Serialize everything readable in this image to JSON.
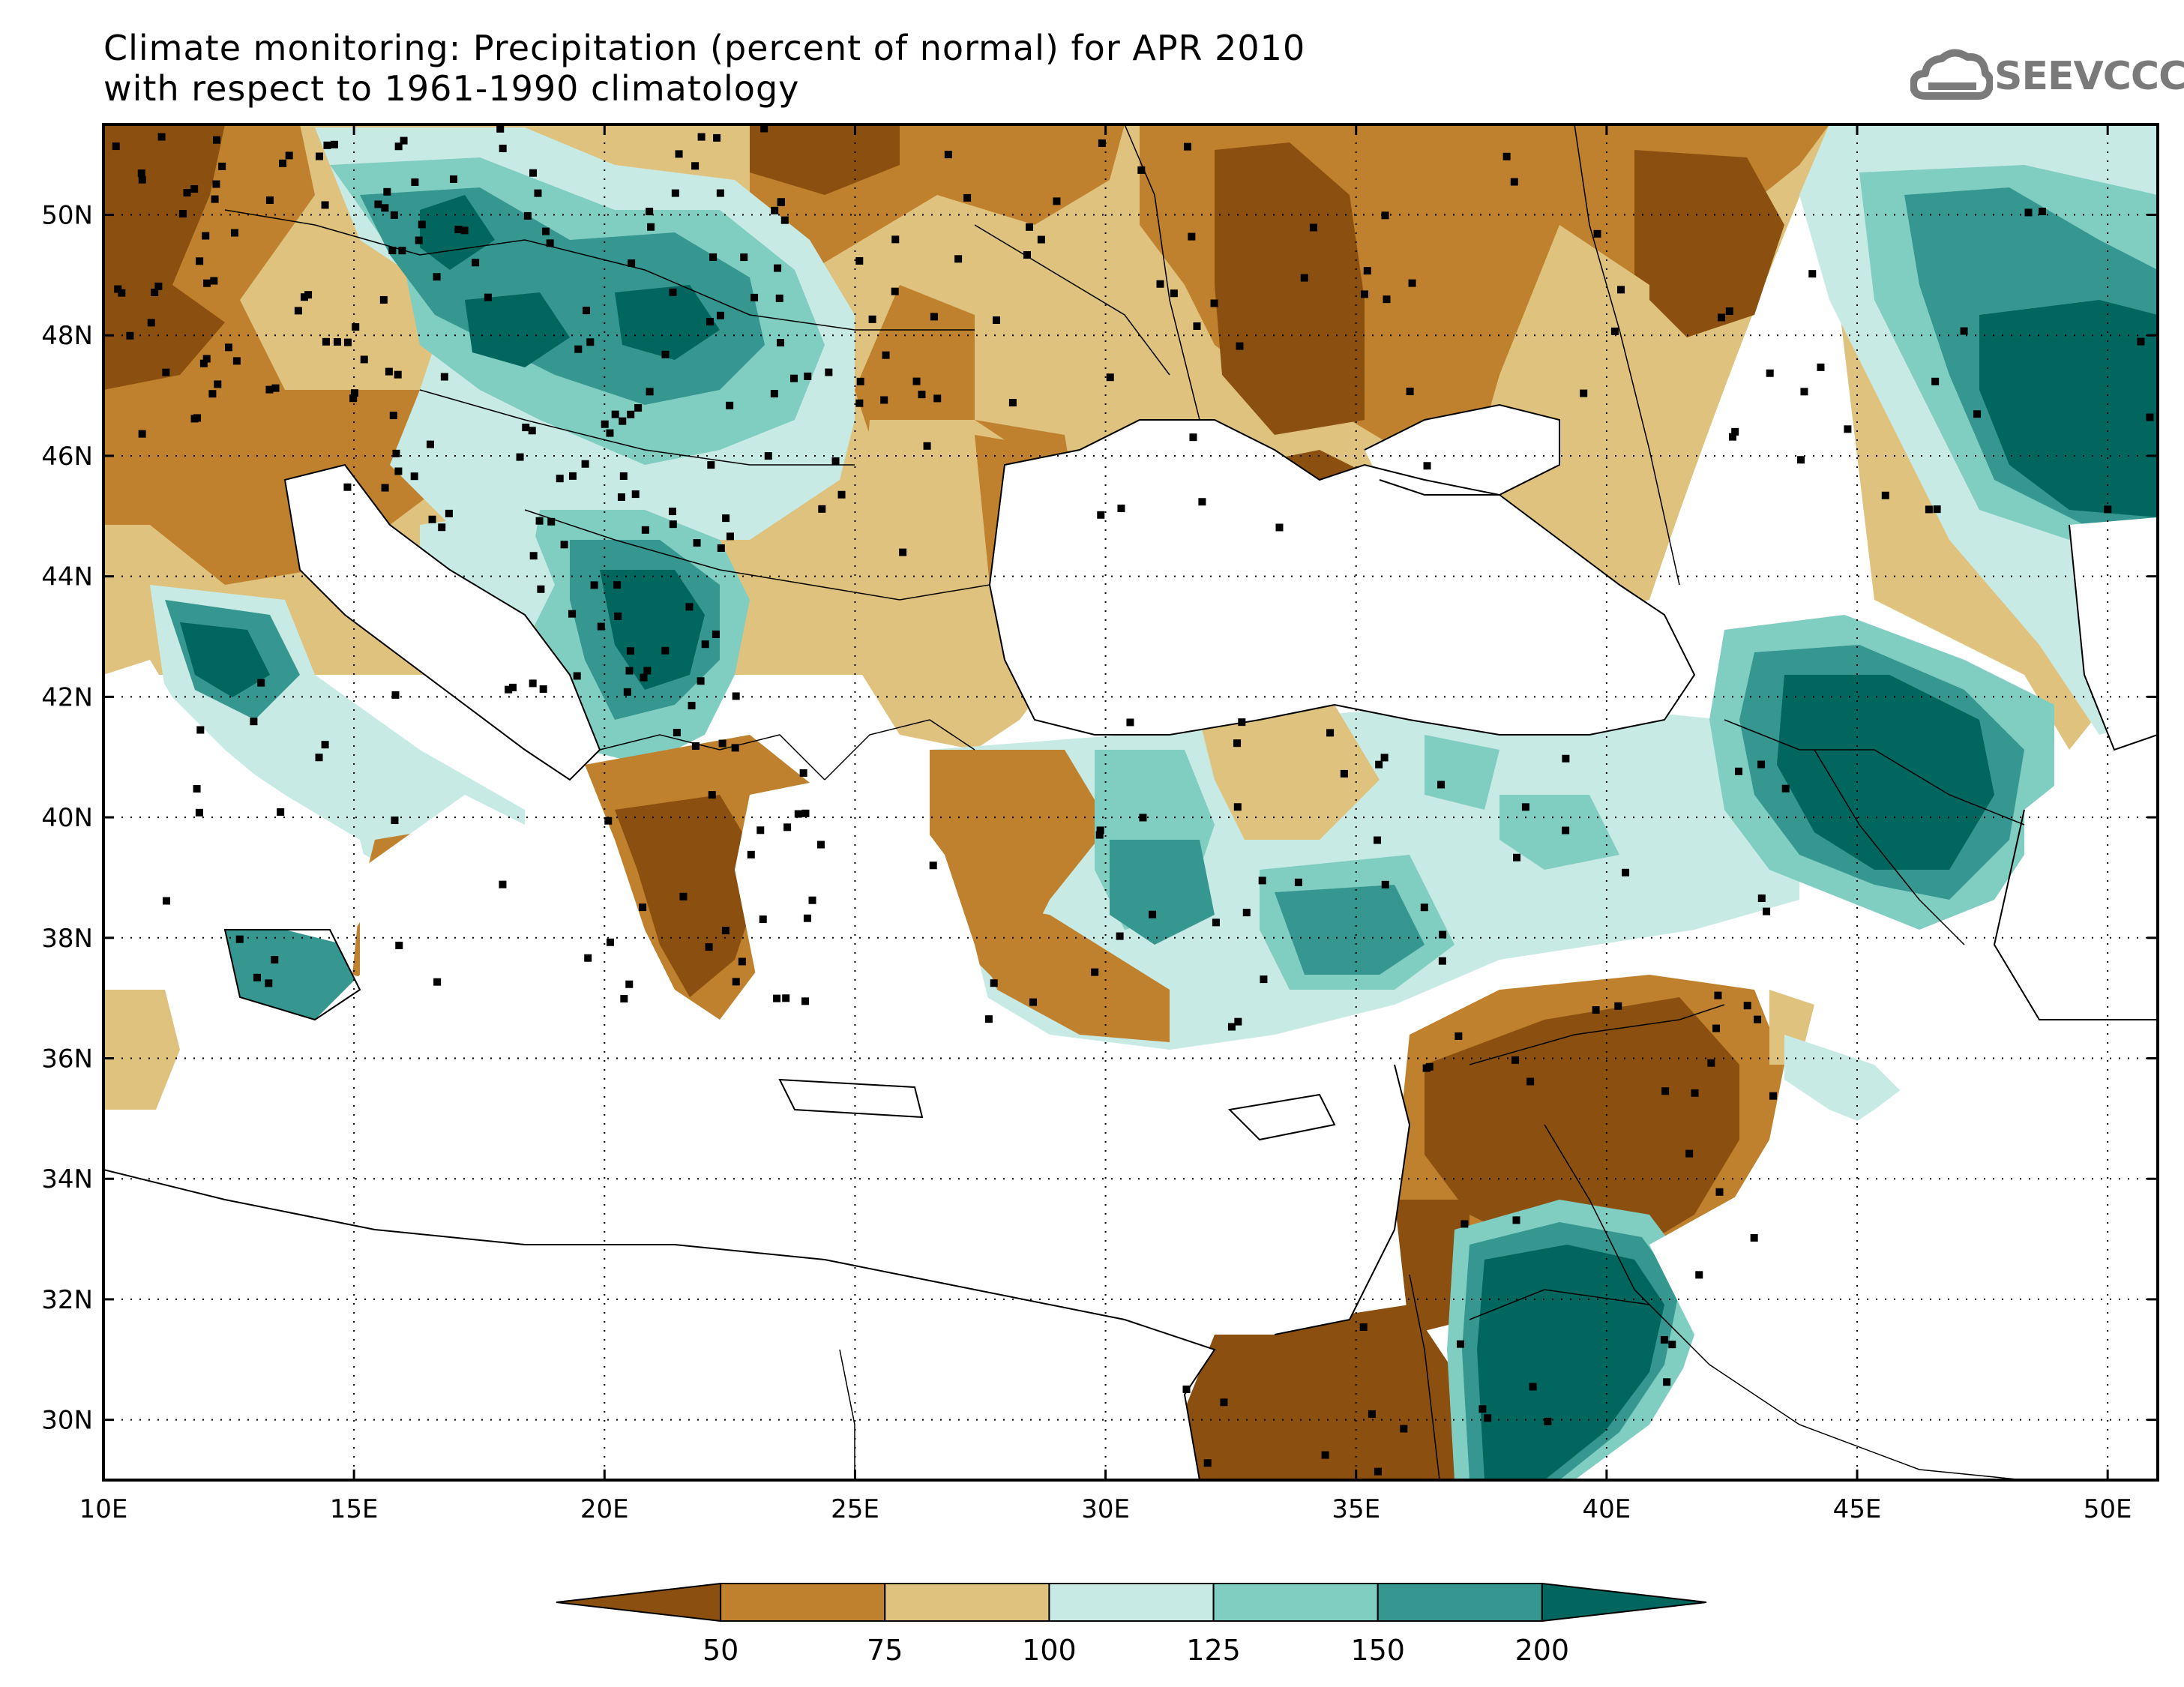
{
  "title": {
    "line1": "Climate monitoring: Precipitation (percent of normal) for APR 2010",
    "line2": "with respect to 1961-1990 climatology"
  },
  "logo": {
    "text": "SEEVCCC",
    "icon": "cloud-icon"
  },
  "map": {
    "lon_range": [
      10,
      51
    ],
    "lat_range": [
      29,
      51.5
    ],
    "lon_ticks": [
      "10E",
      "15E",
      "20E",
      "25E",
      "30E",
      "35E",
      "40E",
      "45E",
      "50E"
    ],
    "lat_ticks": [
      "30N",
      "32N",
      "34N",
      "36N",
      "38N",
      "40N",
      "42N",
      "44N",
      "46N",
      "48N",
      "50N"
    ],
    "grid": "dotted"
  },
  "colorbar": {
    "labels": [
      "50",
      "75",
      "100",
      "125",
      "150",
      "200"
    ],
    "colors": [
      "#8b500f",
      "#bf812d",
      "#dfc27d",
      "#c7eae5",
      "#80cdc1",
      "#35978f",
      "#01665e"
    ]
  }
}
